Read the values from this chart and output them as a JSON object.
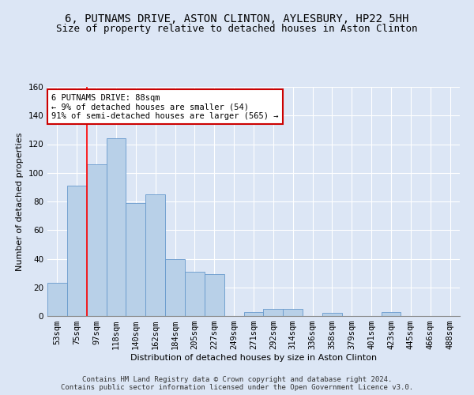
{
  "title_line1": "6, PUTNAMS DRIVE, ASTON CLINTON, AYLESBURY, HP22 5HH",
  "title_line2": "Size of property relative to detached houses in Aston Clinton",
  "xlabel": "Distribution of detached houses by size in Aston Clinton",
  "ylabel": "Number of detached properties",
  "categories": [
    "53sqm",
    "75sqm",
    "97sqm",
    "118sqm",
    "140sqm",
    "162sqm",
    "184sqm",
    "205sqm",
    "227sqm",
    "249sqm",
    "271sqm",
    "292sqm",
    "314sqm",
    "336sqm",
    "358sqm",
    "379sqm",
    "401sqm",
    "423sqm",
    "445sqm",
    "466sqm",
    "488sqm"
  ],
  "values": [
    23,
    91,
    106,
    124,
    79,
    85,
    40,
    31,
    29,
    0,
    3,
    5,
    5,
    0,
    2,
    0,
    0,
    3,
    0,
    0,
    0
  ],
  "bar_color": "#b8d0e8",
  "bar_edge_color": "#6699cc",
  "red_line_x": 1.5,
  "annotation_text": "6 PUTNAMS DRIVE: 88sqm\n← 9% of detached houses are smaller (54)\n91% of semi-detached houses are larger (565) →",
  "annotation_box_color": "#ffffff",
  "annotation_box_edge": "#cc0000",
  "ylim": [
    0,
    160
  ],
  "yticks": [
    0,
    20,
    40,
    60,
    80,
    100,
    120,
    140,
    160
  ],
  "footer_line1": "Contains HM Land Registry data © Crown copyright and database right 2024.",
  "footer_line2": "Contains public sector information licensed under the Open Government Licence v3.0.",
  "bg_color": "#dce6f5",
  "plot_bg_color": "#dce6f5",
  "grid_color": "#ffffff",
  "title_fontsize": 10,
  "subtitle_fontsize": 9,
  "axis_label_fontsize": 8,
  "tick_fontsize": 7.5,
  "footer_fontsize": 6.5,
  "annotation_fontsize": 7.5
}
